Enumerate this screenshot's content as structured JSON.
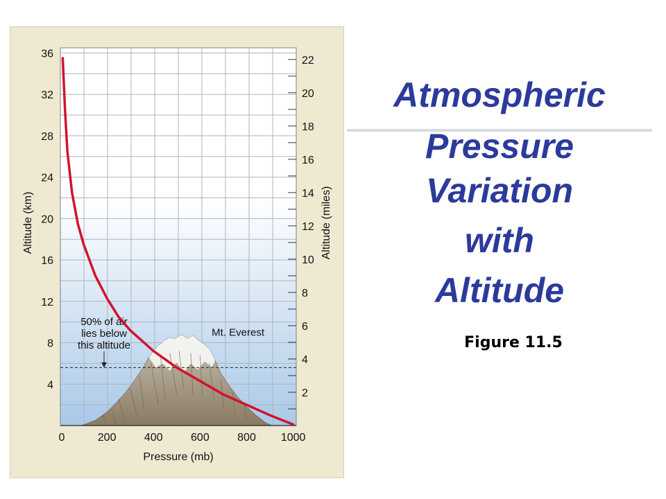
{
  "title_lines": [
    "Atmospheric",
    "Pressure",
    "Variation",
    "with",
    "Altitude"
  ],
  "figure_label": "Figure 11.5",
  "chart_data": {
    "type": "line",
    "xlabel": "Pressure (mb)",
    "ylabel": "Altitude (km)",
    "y2label": "Altitude (miles)",
    "xlim": [
      0,
      1013
    ],
    "ylim": [
      0,
      36.5
    ],
    "y2lim": [
      0,
      22.7
    ],
    "x_ticks": [
      0,
      200,
      400,
      600,
      800,
      1000
    ],
    "y_ticks": [
      4,
      8,
      12,
      16,
      20,
      24,
      28,
      32,
      36
    ],
    "y2_ticks": [
      2,
      4,
      6,
      8,
      10,
      12,
      14,
      16,
      18,
      20,
      22
    ],
    "grid": true,
    "series": [
      {
        "x": [
          10,
          20,
          30,
          50,
          75,
          100,
          150,
          200,
          250,
          300,
          400,
          500,
          600,
          700,
          800,
          900,
          1000
        ],
        "y": [
          35.5,
          30.5,
          26.5,
          22.5,
          19.5,
          17.5,
          14.5,
          12.3,
          10.5,
          9.2,
          7.2,
          5.6,
          4.3,
          3.0,
          2.0,
          1.0,
          0.1
        ]
      }
    ],
    "annotations": {
      "half_air": {
        "lines": [
          "50% of air",
          "lies below",
          "this altitude"
        ],
        "y": 5.6
      },
      "everest": {
        "label": "Mt. Everest",
        "y": 8.8
      }
    },
    "colors": {
      "curve": "#d0142c",
      "sky_top": "#ffffff",
      "sky_bottom": "#a9c9e8",
      "grid": "#aeb3bb"
    }
  }
}
